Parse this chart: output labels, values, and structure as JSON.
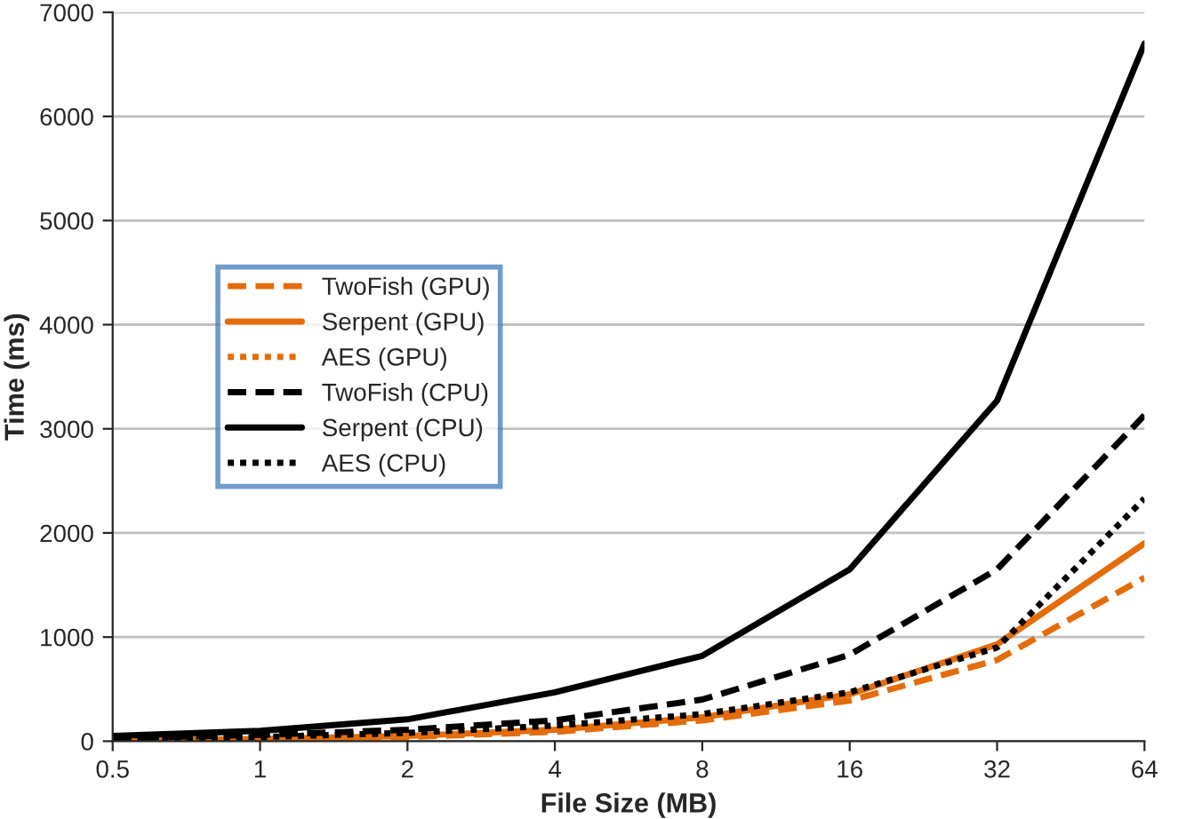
{
  "chart_data": {
    "type": "line",
    "xlabel": "File Size (MB)",
    "ylabel": "Time (ms)",
    "categories": [
      "0.5",
      "1",
      "2",
      "4",
      "8",
      "16",
      "32",
      "64"
    ],
    "ylim": [
      0,
      7000
    ],
    "yticks": [
      0,
      1000,
      2000,
      3000,
      4000,
      5000,
      6000,
      7000
    ],
    "grid": "y",
    "legend": "left",
    "series": [
      {
        "name": "TwoFish (GPU)",
        "color": "#e46c0a",
        "line_style": "dashed",
        "values": [
          10,
          20,
          40,
          90,
          200,
          390,
          780,
          1570
        ]
      },
      {
        "name": "Serpent (GPU)",
        "color": "#e46c0a",
        "line_style": "solid",
        "values": [
          10,
          20,
          50,
          110,
          230,
          450,
          930,
          1900
        ]
      },
      {
        "name": "AES (GPU)",
        "color": "#e46c0a",
        "line_style": "dotted",
        "values": [
          null,
          null,
          null,
          null,
          null,
          null,
          null,
          null
        ]
      },
      {
        "name": "TwoFish (CPU)",
        "color": "#000000",
        "line_style": "dashed",
        "values": [
          30,
          60,
          110,
          200,
          400,
          830,
          1650,
          3130
        ]
      },
      {
        "name": "Serpent (CPU)",
        "color": "#000000",
        "line_style": "solid",
        "values": [
          50,
          100,
          210,
          470,
          820,
          1650,
          3270,
          6700
        ]
      },
      {
        "name": "AES (CPU)",
        "color": "#000000",
        "line_style": "dotted",
        "values": [
          20,
          40,
          80,
          150,
          260,
          470,
          900,
          2330
        ]
      }
    ]
  }
}
